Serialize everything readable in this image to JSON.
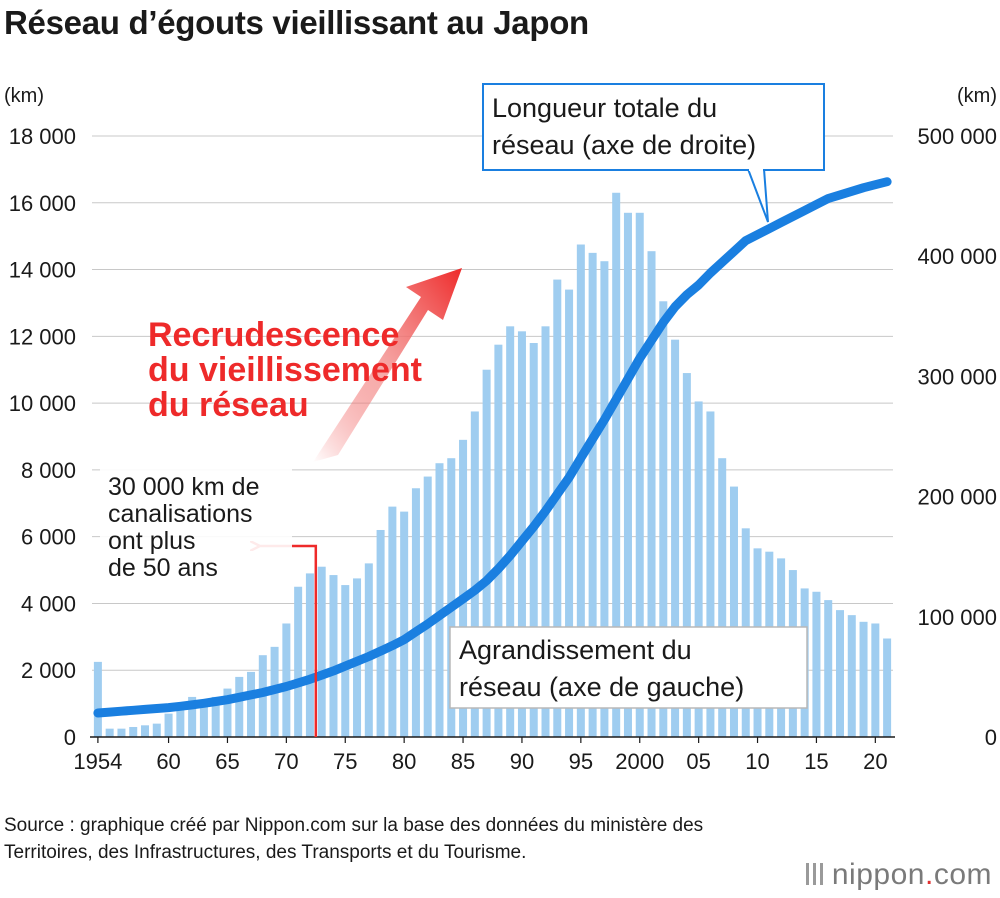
{
  "title": "Réseau d’égouts vieillissant au Japon",
  "source": "Source : graphique créé par Nippon.com sur la base des données du ministère des Territoires, des Infrastructures, des Transports et du Tourisme.",
  "logo": {
    "main": "nippon",
    "dot": ".",
    "suffix": "com"
  },
  "colors": {
    "bars": "#9fcdf0",
    "line": "#1a7fe0",
    "annotation_red": "#ee2a2a",
    "grid": "#c8c8c8"
  },
  "chart_data": {
    "type": "bar",
    "left_unit": "(km)",
    "right_unit": "(km)",
    "ylim_left": [
      0,
      18000
    ],
    "ylim_right": [
      0,
      500000
    ],
    "left_ticks": [
      "0",
      "2 000",
      "4 000",
      "6 000",
      "8 000",
      "10 000",
      "12 000",
      "14 000",
      "16 000",
      "18 000"
    ],
    "right_ticks": [
      "0",
      "100 000",
      "200 000",
      "300 000",
      "400 000",
      "500 000"
    ],
    "x_tick_labels": [
      {
        "year": 1954,
        "label": "1954"
      },
      {
        "year": 1960,
        "label": "60"
      },
      {
        "year": 1965,
        "label": "65"
      },
      {
        "year": 1970,
        "label": "70"
      },
      {
        "year": 1975,
        "label": "75"
      },
      {
        "year": 1980,
        "label": "80"
      },
      {
        "year": 1985,
        "label": "85"
      },
      {
        "year": 1990,
        "label": "90"
      },
      {
        "year": 1995,
        "label": "95"
      },
      {
        "year": 2000,
        "label": "2000"
      },
      {
        "year": 2005,
        "label": "05"
      },
      {
        "year": 2010,
        "label": "10"
      },
      {
        "year": 2015,
        "label": "15"
      },
      {
        "year": 2020,
        "label": "20"
      }
    ],
    "years": [
      1954,
      1955,
      1956,
      1957,
      1958,
      1959,
      1960,
      1961,
      1962,
      1963,
      1964,
      1965,
      1966,
      1967,
      1968,
      1969,
      1970,
      1971,
      1972,
      1973,
      1974,
      1975,
      1976,
      1977,
      1978,
      1979,
      1980,
      1981,
      1982,
      1983,
      1984,
      1985,
      1986,
      1987,
      1988,
      1989,
      1990,
      1991,
      1992,
      1993,
      1994,
      1995,
      1996,
      1997,
      1998,
      1999,
      2000,
      2001,
      2002,
      2003,
      2004,
      2005,
      2006,
      2007,
      2008,
      2009,
      2010,
      2011,
      2012,
      2013,
      2014,
      2015,
      2016,
      2017,
      2018,
      2019,
      2020,
      2021
    ],
    "series": [
      {
        "name": "Agrandissement du réseau (axe de gauche)",
        "axis": "left",
        "type": "bar",
        "values": [
          2250,
          250,
          250,
          300,
          350,
          400,
          700,
          850,
          1200,
          1050,
          1200,
          1450,
          1800,
          1950,
          2450,
          2700,
          3400,
          4500,
          4900,
          5100,
          4850,
          4550,
          4750,
          5200,
          6200,
          6900,
          6750,
          7450,
          7800,
          8200,
          8350,
          8900,
          9750,
          11000,
          11750,
          12300,
          12150,
          11800,
          12300,
          13700,
          13400,
          14750,
          14500,
          14250,
          16300,
          15700,
          15700,
          14550,
          13050,
          11900,
          10900,
          10050,
          9750,
          8350,
          7500,
          6250,
          5650,
          5550,
          5350,
          5000,
          4450,
          4350,
          4100,
          3800,
          3650,
          3450,
          3400,
          2950
        ]
      },
      {
        "name": "Longueur totale du réseau (axe de droite)",
        "axis": "right",
        "type": "line",
        "values": [
          20000,
          20750,
          21500,
          22250,
          23000,
          23750,
          24500,
          25500,
          26700,
          28000,
          29500,
          31000,
          33000,
          35000,
          37000,
          39500,
          42000,
          45000,
          48000,
          51500,
          55000,
          59000,
          63000,
          67000,
          71500,
          76000,
          81000,
          87500,
          94000,
          101000,
          108000,
          115000,
          122000,
          130000,
          140000,
          151000,
          163000,
          175000,
          188000,
          202000,
          216000,
          232000,
          248000,
          264000,
          281000,
          298000,
          315000,
          330000,
          345000,
          358000,
          368000,
          376000,
          386000,
          395000,
          404000,
          413000,
          418000,
          423000,
          428000,
          433000,
          438000,
          443000,
          448000,
          451000,
          454000,
          457000,
          459500,
          462000
        ]
      }
    ],
    "annotations": {
      "trend_label": [
        "Recrudescence",
        "du vieillissement",
        "du réseau"
      ],
      "old_pipes_label": [
        "30 000 km de",
        "canalisations",
        "ont plus",
        "de 50 ans"
      ],
      "old_pipes_year": 1972.5,
      "line_callout": [
        "Longueur totale du",
        "réseau (axe de droite)"
      ],
      "bar_callout": [
        "Agrandissement du",
        "réseau (axe de gauche)"
      ]
    }
  }
}
